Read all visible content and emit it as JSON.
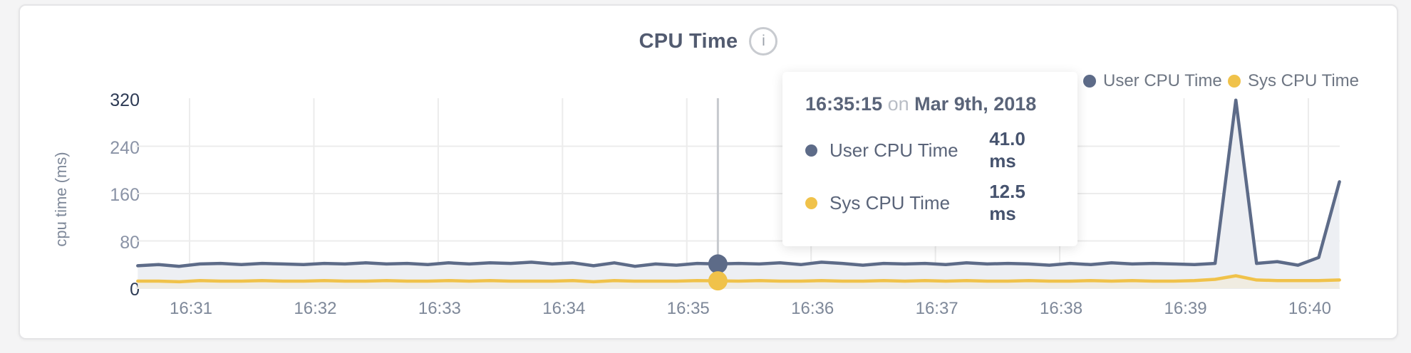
{
  "card": {
    "title": "CPU Time",
    "info_icon_glyph": "i"
  },
  "legend": [
    {
      "label": "User CPU Time",
      "color": "#5d6b88"
    },
    {
      "label": "Sys CPU Time",
      "color": "#f0c24a"
    }
  ],
  "y_axis_label": "cpu time (ms)",
  "tooltip": {
    "time": "16:35:15",
    "connector": "on",
    "date": "Mar 9th, 2018",
    "rows": [
      {
        "label": "User CPU Time",
        "value": "41.0 ms",
        "color": "#5d6b88"
      },
      {
        "label": "Sys CPU Time",
        "value": "12.5 ms",
        "color": "#f0c24a"
      }
    ]
  },
  "chart_data": {
    "type": "line",
    "title": "CPU Time",
    "xlabel": "",
    "ylabel": "cpu time (ms)",
    "ylim": [
      0,
      320
    ],
    "x_ticks": [
      "16:31",
      "16:32",
      "16:33",
      "16:34",
      "16:35",
      "16:36",
      "16:37",
      "16:38",
      "16:39",
      "16:40"
    ],
    "y_ticks": [
      {
        "v": 0,
        "label": "0",
        "strong": true,
        "grid": true
      },
      {
        "v": 80,
        "label": "80",
        "strong": false,
        "grid": true
      },
      {
        "v": 160,
        "label": "160",
        "strong": false,
        "grid": true
      },
      {
        "v": 240,
        "label": "240",
        "strong": false,
        "grid": true
      },
      {
        "v": 320,
        "label": "320",
        "strong": true,
        "grid": false
      }
    ],
    "grid_color": "#ececec",
    "hover": {
      "time": "16:35:15",
      "line_color": "#c6c9ce"
    },
    "series": [
      {
        "name": "User CPU Time",
        "color": "#5d6b88",
        "fill": "#edeff3",
        "points": [
          [
            "16:30:35",
            38
          ],
          [
            "16:30:45",
            40
          ],
          [
            "16:30:55",
            37
          ],
          [
            "16:31:05",
            41
          ],
          [
            "16:31:15",
            42
          ],
          [
            "16:31:25",
            40
          ],
          [
            "16:31:35",
            42
          ],
          [
            "16:31:45",
            41
          ],
          [
            "16:31:55",
            40
          ],
          [
            "16:32:05",
            42
          ],
          [
            "16:32:15",
            41
          ],
          [
            "16:32:25",
            43
          ],
          [
            "16:32:35",
            41
          ],
          [
            "16:32:45",
            42
          ],
          [
            "16:32:55",
            40
          ],
          [
            "16:33:05",
            43
          ],
          [
            "16:33:15",
            41
          ],
          [
            "16:33:25",
            43
          ],
          [
            "16:33:35",
            42
          ],
          [
            "16:33:45",
            44
          ],
          [
            "16:33:55",
            41
          ],
          [
            "16:34:05",
            43
          ],
          [
            "16:34:15",
            38
          ],
          [
            "16:34:25",
            43
          ],
          [
            "16:34:35",
            37
          ],
          [
            "16:34:45",
            41
          ],
          [
            "16:34:55",
            39
          ],
          [
            "16:35:05",
            42
          ],
          [
            "16:35:15",
            41
          ],
          [
            "16:35:25",
            42
          ],
          [
            "16:35:35",
            41
          ],
          [
            "16:35:45",
            43
          ],
          [
            "16:35:55",
            40
          ],
          [
            "16:36:05",
            44
          ],
          [
            "16:36:15",
            42
          ],
          [
            "16:36:25",
            39
          ],
          [
            "16:36:35",
            42
          ],
          [
            "16:36:45",
            41
          ],
          [
            "16:36:55",
            42
          ],
          [
            "16:37:05",
            40
          ],
          [
            "16:37:15",
            43
          ],
          [
            "16:37:25",
            41
          ],
          [
            "16:37:35",
            42
          ],
          [
            "16:37:45",
            41
          ],
          [
            "16:37:55",
            39
          ],
          [
            "16:38:05",
            42
          ],
          [
            "16:38:15",
            40
          ],
          [
            "16:38:25",
            43
          ],
          [
            "16:38:35",
            41
          ],
          [
            "16:38:45",
            42
          ],
          [
            "16:38:55",
            41
          ],
          [
            "16:39:05",
            40
          ],
          [
            "16:39:15",
            42
          ],
          [
            "16:39:25",
            318
          ],
          [
            "16:39:35",
            42
          ],
          [
            "16:39:45",
            45
          ],
          [
            "16:39:55",
            39
          ],
          [
            "16:40:05",
            52
          ],
          [
            "16:40:15",
            180
          ]
        ]
      },
      {
        "name": "Sys CPU Time",
        "color": "#f0c24a",
        "fill": "#f0ece1",
        "points": [
          [
            "16:30:35",
            12
          ],
          [
            "16:30:45",
            12
          ],
          [
            "16:30:55",
            11
          ],
          [
            "16:31:05",
            13
          ],
          [
            "16:31:15",
            12
          ],
          [
            "16:31:25",
            12
          ],
          [
            "16:31:35",
            13
          ],
          [
            "16:31:45",
            12
          ],
          [
            "16:31:55",
            12
          ],
          [
            "16:32:05",
            13
          ],
          [
            "16:32:15",
            12
          ],
          [
            "16:32:25",
            12
          ],
          [
            "16:32:35",
            13
          ],
          [
            "16:32:45",
            12
          ],
          [
            "16:32:55",
            12
          ],
          [
            "16:33:05",
            13
          ],
          [
            "16:33:15",
            12
          ],
          [
            "16:33:25",
            13
          ],
          [
            "16:33:35",
            12
          ],
          [
            "16:33:45",
            12
          ],
          [
            "16:33:55",
            12
          ],
          [
            "16:34:05",
            13
          ],
          [
            "16:34:15",
            11
          ],
          [
            "16:34:25",
            13
          ],
          [
            "16:34:35",
            12
          ],
          [
            "16:34:45",
            12
          ],
          [
            "16:34:55",
            12
          ],
          [
            "16:35:05",
            13
          ],
          [
            "16:35:15",
            12.5
          ],
          [
            "16:35:25",
            12
          ],
          [
            "16:35:35",
            13
          ],
          [
            "16:35:45",
            12
          ],
          [
            "16:35:55",
            12
          ],
          [
            "16:36:05",
            13
          ],
          [
            "16:36:15",
            12
          ],
          [
            "16:36:25",
            12
          ],
          [
            "16:36:35",
            13
          ],
          [
            "16:36:45",
            12
          ],
          [
            "16:36:55",
            13
          ],
          [
            "16:37:05",
            12
          ],
          [
            "16:37:15",
            13
          ],
          [
            "16:37:25",
            12
          ],
          [
            "16:37:35",
            12
          ],
          [
            "16:37:45",
            13
          ],
          [
            "16:37:55",
            12
          ],
          [
            "16:38:05",
            12
          ],
          [
            "16:38:15",
            13
          ],
          [
            "16:38:25",
            12
          ],
          [
            "16:38:35",
            13
          ],
          [
            "16:38:45",
            12
          ],
          [
            "16:38:55",
            12
          ],
          [
            "16:39:05",
            13
          ],
          [
            "16:39:15",
            15
          ],
          [
            "16:39:25",
            21
          ],
          [
            "16:39:35",
            14
          ],
          [
            "16:39:45",
            13
          ],
          [
            "16:39:55",
            13
          ],
          [
            "16:40:05",
            13
          ],
          [
            "16:40:15",
            14
          ]
        ]
      }
    ]
  }
}
